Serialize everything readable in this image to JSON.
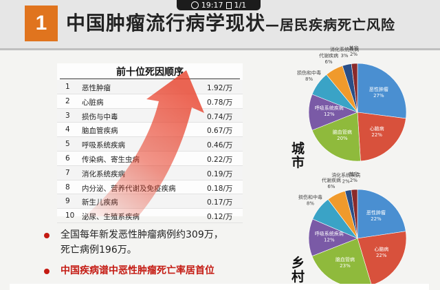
{
  "status_bar": {
    "time": "19:17",
    "page": "1/1"
  },
  "header": {
    "number": "1",
    "title": "中国肿瘤流行病学现状",
    "subtitle": "—居民疾病死亡风险"
  },
  "table": {
    "title": "前十位死因顺序",
    "rows": [
      {
        "rank": "1",
        "name": "恶性肿瘤",
        "value": "1.92/万"
      },
      {
        "rank": "2",
        "name": "心脏病",
        "value": "0.78/万"
      },
      {
        "rank": "3",
        "name": "损伤与中毒",
        "value": "0.74/万"
      },
      {
        "rank": "4",
        "name": "脑血管疾病",
        "value": "0.67/万"
      },
      {
        "rank": "5",
        "name": "呼吸系统疾病",
        "value": "0.46/万"
      },
      {
        "rank": "6",
        "name": "传染病、寄生虫病",
        "value": "0.22/万"
      },
      {
        "rank": "7",
        "name": "消化系统疾病",
        "value": "0.19/万"
      },
      {
        "rank": "8",
        "name": "内分泌、营养代谢及免疫疾病",
        "value": "0.18/万"
      },
      {
        "rank": "9",
        "name": "新生儿疾病",
        "value": "0.17/万"
      },
      {
        "rank": "10",
        "name": "泌尿、生殖系疾病",
        "value": "0.12/万"
      }
    ]
  },
  "bullets": {
    "b1": "全国每年新发恶性肿瘤病例约309万，",
    "b1b": "死亡病例196万。",
    "b2": "中国疾病谱中恶性肿瘤死亡率居首位"
  },
  "side_labels": {
    "city": "城市",
    "rural": "乡村"
  },
  "colors": {
    "accent": "#e0741e",
    "highlight_red": "#c41a12"
  },
  "chart_data": [
    {
      "type": "pie",
      "title": "城市",
      "categories": [
        "恶性肿瘤",
        "心脑病",
        "脑血管病",
        "呼吸系统疾病",
        "损伤和中毒",
        "代谢疾病",
        "消化系统疾病",
        "其它"
      ],
      "values": [
        27,
        22,
        20,
        12,
        8,
        6,
        3,
        2
      ],
      "labels": [
        "恶性肿瘤\n27%",
        "心脑病\n22%",
        "脑血管病\n20%",
        "呼吸系统疾病\n12%",
        "损伤和中毒\n8%",
        "代谢疾病\n6%",
        "消化系统疾病\n3%",
        "其它\n2%"
      ],
      "colors": [
        "#4a8fd1",
        "#d8513c",
        "#8fba3c",
        "#7a5aa6",
        "#3aa3c6",
        "#f09a2c",
        "#2a4f87",
        "#8a2a2a"
      ]
    },
    {
      "type": "pie",
      "title": "乡村",
      "categories": [
        "恶性肿瘤",
        "心脑病",
        "脑血管病",
        "呼吸系统疾病",
        "损伤和中毒",
        "代谢疾病",
        "消化系统疾病",
        "其它"
      ],
      "values": [
        22,
        22,
        23,
        12,
        8,
        6,
        2,
        2
      ],
      "labels": [
        "恶性肿瘤\n22%",
        "心脑病\n22%",
        "脑血管病\n23%",
        "呼吸系统疾病\n12%",
        "损伤和中毒\n8%",
        "代谢疾病\n6%",
        "消化系统疾病\n2%",
        "其它\n2%"
      ],
      "colors": [
        "#4a8fd1",
        "#d8513c",
        "#8fba3c",
        "#7a5aa6",
        "#3aa3c6",
        "#f09a2c",
        "#2a4f87",
        "#8a2a2a"
      ]
    }
  ]
}
